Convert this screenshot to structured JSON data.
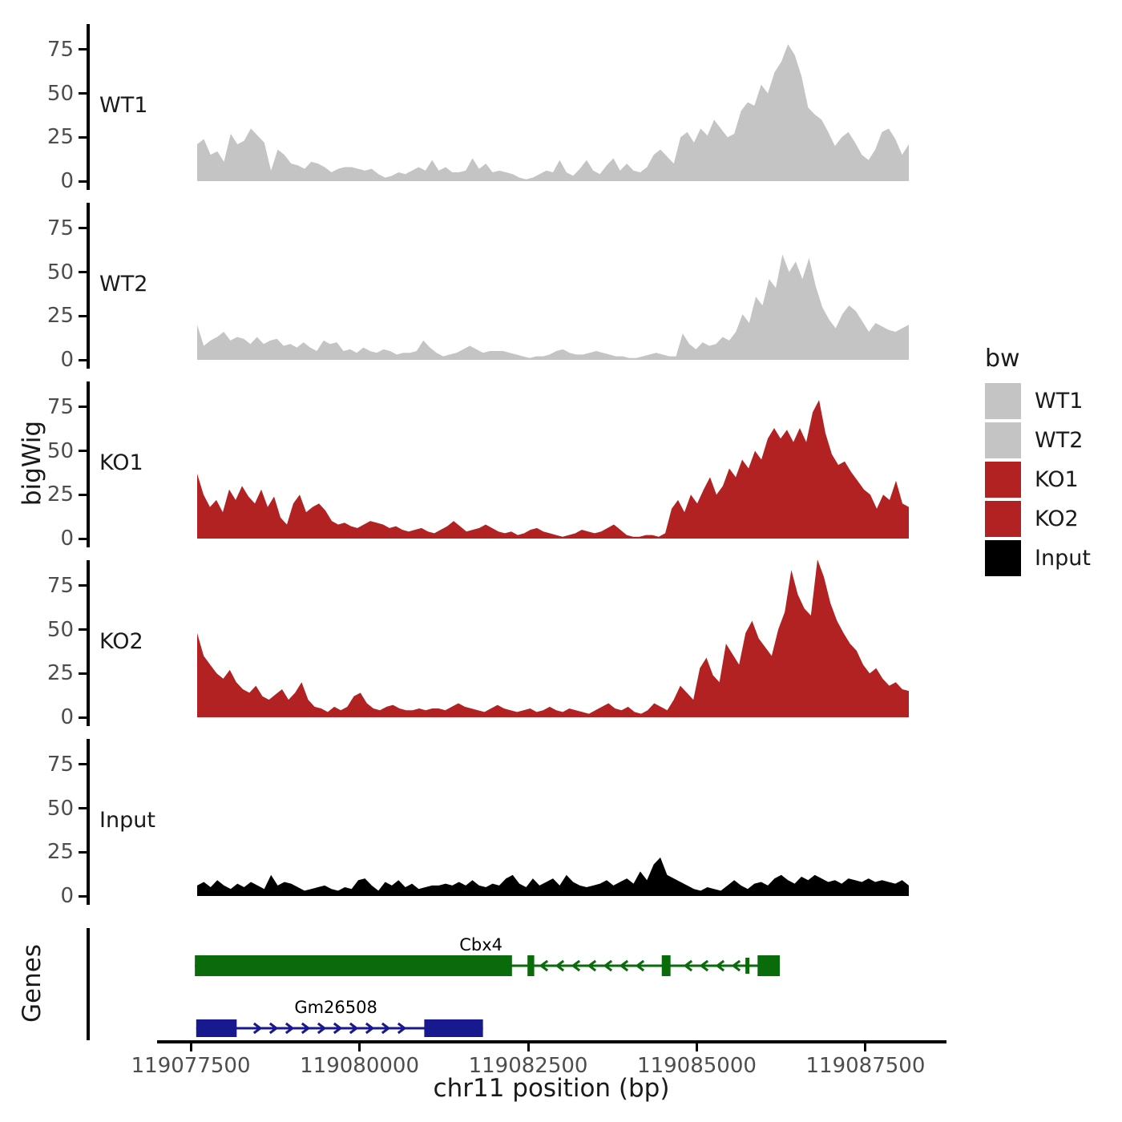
{
  "y_axis": {
    "label": "bigWig",
    "tick_values": [
      0,
      25,
      50,
      75
    ],
    "tick_labels": [
      "0",
      "25",
      "50",
      "75"
    ]
  },
  "x_axis": {
    "label": "chr11 position (bp)",
    "tick_values": [
      119077500,
      119080000,
      119082500,
      119085000,
      119087500
    ],
    "tick_labels": [
      "119077500",
      "119080000",
      "119082500",
      "119085000",
      "119087500"
    ],
    "domain": [
      119077000,
      119088700
    ]
  },
  "genes_panel": {
    "label": "Genes"
  },
  "legend": {
    "title": "bw",
    "entries": [
      {
        "label": "WT1",
        "color": "#c4c4c4"
      },
      {
        "label": "WT2",
        "color": "#c4c4c4"
      },
      {
        "label": "KO1",
        "color": "#b22222"
      },
      {
        "label": "KO2",
        "color": "#b22222"
      },
      {
        "label": "Input",
        "color": "#000000"
      }
    ]
  },
  "colors": {
    "axis_text": "#4d4d4d",
    "axis_line": "#000000",
    "gray_track": "#c4c4c4",
    "red_track": "#b22222",
    "black_track": "#000000",
    "gene_green": "#0a6b0a",
    "gene_blue": "#18188f"
  },
  "chart_data": {
    "type": "area",
    "title": "",
    "xlabel": "chr11 position (bp)",
    "ylabel": "bigWig",
    "x_range": [
      119077600,
      119088150
    ],
    "ylim": [
      0,
      90
    ],
    "yticks": [
      0,
      25,
      50,
      75
    ],
    "xticks": [
      119077500,
      119080000,
      119082500,
      119085000,
      119087500
    ],
    "legend_title": "bw",
    "tracks": [
      {
        "name": "WT1",
        "color": "#c4c4c4",
        "values": [
          21,
          24,
          15,
          17,
          11,
          27,
          21,
          23,
          30,
          26,
          22,
          6,
          18,
          15,
          10,
          9,
          7,
          11,
          10,
          8,
          5,
          7,
          8,
          8,
          7,
          6,
          7,
          4,
          2,
          3,
          5,
          4,
          6,
          8,
          6,
          12,
          6,
          8,
          5,
          5,
          6,
          13,
          7,
          10,
          5,
          6,
          5,
          4,
          2,
          1,
          2,
          4,
          6,
          5,
          12,
          5,
          3,
          7,
          12,
          6,
          4,
          9,
          13,
          6,
          10,
          6,
          5,
          8,
          15,
          18,
          14,
          10,
          25,
          28,
          22,
          30,
          26,
          35,
          30,
          25,
          27,
          40,
          45,
          43,
          55,
          50,
          62,
          68,
          78,
          72,
          60,
          42,
          38,
          35,
          28,
          20,
          25,
          28,
          22,
          15,
          12,
          18,
          28,
          30,
          24,
          15,
          21
        ]
      },
      {
        "name": "WT2",
        "color": "#c4c4c4",
        "values": [
          20,
          8,
          11,
          13,
          16,
          11,
          13,
          12,
          9,
          13,
          9,
          11,
          12,
          8,
          9,
          7,
          10,
          7,
          5,
          11,
          9,
          10,
          5,
          6,
          4,
          7,
          5,
          4,
          6,
          5,
          3,
          4,
          4,
          5,
          11,
          7,
          4,
          2,
          3,
          4,
          6,
          8,
          6,
          4,
          5,
          5,
          5,
          4,
          3,
          2,
          1,
          2,
          2,
          3,
          5,
          6,
          4,
          3,
          3,
          4,
          5,
          4,
          3,
          2,
          2,
          1,
          1,
          2,
          3,
          4,
          3,
          2,
          2,
          15,
          9,
          6,
          10,
          8,
          9,
          13,
          11,
          16,
          26,
          21,
          36,
          31,
          46,
          41,
          60,
          50,
          56,
          46,
          58,
          42,
          30,
          23,
          18,
          26,
          31,
          28,
          22,
          16,
          21,
          19,
          17,
          16,
          18,
          20
        ]
      },
      {
        "name": "KO1",
        "color": "#b22222",
        "values": [
          37,
          25,
          18,
          22,
          15,
          28,
          22,
          30,
          24,
          20,
          28,
          18,
          24,
          12,
          8,
          20,
          25,
          15,
          18,
          20,
          16,
          10,
          8,
          9,
          7,
          6,
          8,
          10,
          9,
          8,
          6,
          7,
          5,
          4,
          5,
          6,
          4,
          3,
          5,
          7,
          10,
          7,
          4,
          5,
          6,
          8,
          6,
          4,
          3,
          4,
          2,
          3,
          5,
          6,
          4,
          3,
          2,
          1,
          2,
          3,
          5,
          4,
          3,
          4,
          6,
          8,
          5,
          2,
          1,
          1,
          2,
          2,
          1,
          3,
          17,
          22,
          15,
          25,
          20,
          28,
          35,
          25,
          30,
          40,
          35,
          45,
          40,
          50,
          45,
          57,
          63,
          57,
          62,
          55,
          63,
          55,
          72,
          79,
          60,
          48,
          42,
          44,
          38,
          33,
          28,
          25,
          17,
          25,
          22,
          33,
          20,
          18
        ]
      },
      {
        "name": "KO2",
        "color": "#b22222",
        "values": [
          48,
          35,
          30,
          25,
          22,
          27,
          20,
          16,
          14,
          18,
          12,
          10,
          13,
          16,
          10,
          14,
          20,
          10,
          6,
          5,
          3,
          6,
          4,
          6,
          12,
          14,
          8,
          5,
          4,
          6,
          7,
          5,
          4,
          4,
          5,
          4,
          5,
          5,
          4,
          6,
          8,
          6,
          5,
          4,
          3,
          5,
          7,
          5,
          4,
          3,
          4,
          5,
          3,
          4,
          6,
          4,
          3,
          5,
          4,
          3,
          2,
          4,
          6,
          8,
          5,
          4,
          6,
          3,
          2,
          4,
          8,
          6,
          4,
          10,
          18,
          14,
          10,
          28,
          34,
          24,
          20,
          42,
          36,
          30,
          48,
          55,
          45,
          40,
          35,
          50,
          60,
          84,
          70,
          62,
          58,
          90,
          80,
          65,
          55,
          48,
          42,
          38,
          30,
          25,
          28,
          22,
          18,
          20,
          16,
          15
        ]
      },
      {
        "name": "Input",
        "color": "#000000",
        "values": [
          6,
          8,
          5,
          9,
          6,
          4,
          7,
          5,
          8,
          6,
          4,
          12,
          6,
          8,
          7,
          5,
          3,
          4,
          5,
          6,
          4,
          3,
          5,
          4,
          9,
          10,
          6,
          3,
          8,
          6,
          9,
          5,
          7,
          4,
          5,
          6,
          6,
          7,
          6,
          8,
          6,
          9,
          6,
          5,
          7,
          6,
          10,
          12,
          7,
          5,
          10,
          6,
          8,
          10,
          6,
          12,
          8,
          6,
          5,
          6,
          7,
          9,
          6,
          8,
          10,
          7,
          14,
          9,
          18,
          22,
          12,
          10,
          8,
          6,
          4,
          3,
          5,
          4,
          3,
          6,
          9,
          6,
          4,
          7,
          8,
          6,
          10,
          12,
          9,
          7,
          11,
          9,
          12,
          10,
          8,
          9,
          7,
          10,
          9,
          8,
          10,
          8,
          9,
          8,
          7,
          9,
          6
        ]
      }
    ],
    "genes": [
      {
        "name": "Cbx4",
        "strand": "-",
        "color": "#0a6b0a",
        "row": 0,
        "span": [
          119077560,
          119086230
        ],
        "exons": [
          [
            119077560,
            119082260
          ],
          [
            119082490,
            119082590
          ],
          [
            119084480,
            119084610
          ],
          [
            119085900,
            119086230
          ]
        ],
        "thin_exons": [
          [
            119085720,
            119085780
          ]
        ],
        "label_x": 119081800
      },
      {
        "name": "Gm26508",
        "strand": "+",
        "color": "#18188f",
        "row": 1,
        "span": [
          119077580,
          119081830
        ],
        "exons": [
          [
            119077580,
            119078180
          ],
          [
            119080960,
            119081830
          ]
        ],
        "thin_exons": [],
        "label_x": 119079650
      }
    ]
  }
}
